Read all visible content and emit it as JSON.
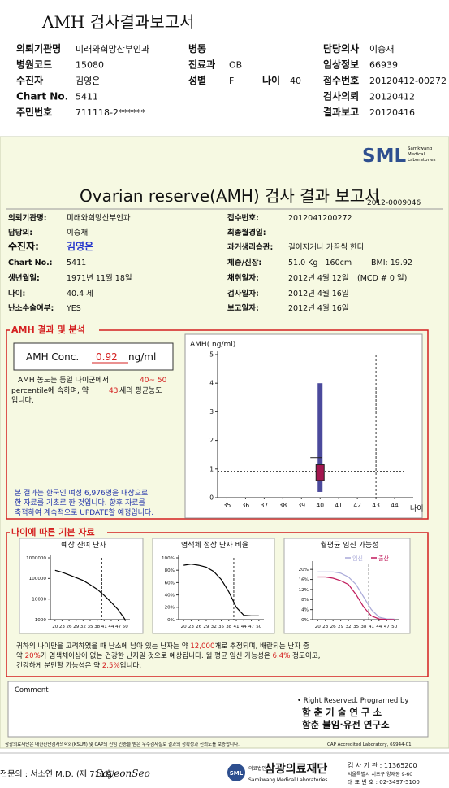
{
  "header": {
    "title": "AMH 검사결과보고서",
    "left": [
      {
        "label": "의뢰기관명",
        "value": "미래와희망산부인과"
      },
      {
        "label": "병원코드",
        "value": "15080"
      },
      {
        "label": "수진자",
        "value": "김영은"
      },
      {
        "label": "Chart No.",
        "value": "5411"
      },
      {
        "label": "주민번호",
        "value": "711118-2******"
      }
    ],
    "middle": [
      {
        "label": "병동"
      },
      {
        "label": "진료과",
        "value": "OB"
      },
      {
        "label": "성별",
        "value": "F"
      }
    ],
    "age": {
      "label": "나이",
      "value": "40"
    },
    "right": [
      {
        "label": "담당의사",
        "value": "이승재"
      },
      {
        "label": "임상정보",
        "value": "66939"
      },
      {
        "label": "접수번호",
        "value": "20120412-00272"
      },
      {
        "label": "검사의뢰",
        "value": "20120412"
      },
      {
        "label": "결과보고",
        "value": "20120416"
      }
    ]
  },
  "report": {
    "logo": {
      "mark": "SML",
      "lines": [
        "Samkwang",
        "Medical",
        "Laboratories"
      ]
    },
    "title": "Ovarian reserve(AMH) 검사 결과 보고서",
    "number": "2012-0009046",
    "left": [
      {
        "label": "의뢰기관명:",
        "value": "미래와희망산부인과"
      },
      {
        "label": "담당의:",
        "value": "이승재"
      },
      {
        "label": "수진자:",
        "value": "김영은"
      },
      {
        "label": "Chart No.:",
        "value": "5411"
      },
      {
        "label": "생년월일:",
        "value": "1971년 11월 18일"
      },
      {
        "label": "나이:",
        "value": "40.4 세"
      },
      {
        "label": "난소수술여부:",
        "value": "YES"
      }
    ],
    "right": [
      {
        "label": "접수번호:",
        "value": "2012041200272"
      },
      {
        "label": "최종월경일:"
      },
      {
        "label": "과거생리습관:",
        "value": "길어지거나 가끔씩 한다"
      },
      {
        "label": "체중/신장:",
        "value": "51.0 Kg   160cm",
        "extra": "BMI: 19.92"
      },
      {
        "label": "채취일자:",
        "value": "2012년 4월 12일",
        "extra": "(MCD # 0 일)"
      },
      {
        "label": "검사일자:",
        "value": "2012년 4월 16일"
      },
      {
        "label": "보고일자:",
        "value": "2012년 4월 16일"
      }
    ],
    "amh": {
      "section_title": "AMH 결과 및 분석",
      "conc_label": "AMH Conc.",
      "conc_value": "0.92",
      "conc_unit": "ng/ml",
      "description": [
        "AMH 농도는 동일 나이군에서",
        "40~ 50",
        "percentile에 속하며, 약",
        "43",
        "세의 평균농도",
        "입니다."
      ],
      "note": [
        "본 결과는 한국인 여성 6,976명을 대상으로",
        "한 자료를 기초로 한 것입니다. 향후 자료를",
        "축적하여 계속적으로 UPDATE할 예정입니다."
      ]
    },
    "basic": {
      "section_title": "나이에 따른 기본 자료",
      "summary": [
        [
          "귀하의 나이만을 고려하였을 때 난소에 남아 있는 난자는 약 ",
          "12,000",
          "개로 추정되며, 배란되는 난자 중"
        ],
        [
          "약 ",
          "20%",
          "가 염색체이상이 없는 건강한 난자일 것으로 예상됩니다. 월 평균 임신 가능성은 ",
          "6.4%",
          " 정도이고,"
        ],
        [
          "건강하게 분만할 가능성은 약 ",
          "2.5%",
          "입니다."
        ]
      ]
    },
    "comment": "Comment",
    "credits": [
      "• Right Reserved. Programed by",
      "함 춘 기 술 연 구 소",
      "함춘 불임·유전 연구소"
    ]
  },
  "footer": {
    "note": "삼광의료재단은 대한진단검사의학회(KSLM) 및 CAP의 신임 인증을 받은 우수검사실로 결과의 정확성과 신뢰도를 보증합니다.",
    "cap": "CAP Accredited Laboratory, 69944-01",
    "doctor": "전문의 : 서소연 M.D. (제 711호)",
    "signature": "SoyeonSeo",
    "org_type": "의료법인",
    "org_name": "삼광의료재단",
    "org_en": "Samkwang Medical Laboratories",
    "org_mark": "SML",
    "contact": [
      "검 사 기 관 : 11365200",
      "서울특별시 서초구 양재동 9-60",
      "대 표 번 호 : 02-3497-5100"
    ]
  },
  "chart_data": [
    {
      "type": "box",
      "y_label": "AMH( ng/ml)",
      "x_label": "나이",
      "xlim": [
        34.5,
        45
      ],
      "xticks": [
        35,
        36,
        37,
        38,
        39,
        40,
        41,
        42,
        43,
        44
      ],
      "ylim": [
        0,
        5
      ],
      "yticks": [
        0,
        1,
        2,
        3,
        4,
        5
      ],
      "box": {
        "x": 40,
        "low": 0.2,
        "q1": 0.6,
        "q3": 1.15,
        "high": 4.0,
        "mean": 1.4
      },
      "whisker_color": "#4b4a9c",
      "box_color": "#a3164f",
      "reference_value": 0.92,
      "reference_age": 43
    },
    {
      "type": "line",
      "title": "예상 잔여 난자",
      "x": [
        20,
        23,
        26,
        29,
        32,
        35,
        38,
        41,
        44,
        47,
        50
      ],
      "xlim": [
        18,
        52
      ],
      "xticks": [
        20,
        23,
        26,
        29,
        32,
        35,
        38,
        41,
        44,
        47,
        50
      ],
      "log": true,
      "ylim": [
        1000,
        1000000
      ],
      "yticks": [
        1000,
        10000,
        100000,
        1000000
      ],
      "values": [
        250000,
        200000,
        150000,
        110000,
        80000,
        50000,
        30000,
        15000,
        7000,
        3000,
        1000
      ],
      "color": "#000000",
      "marker_x": 40
    },
    {
      "type": "line",
      "title": "염색체 정상 난자 비율",
      "x": [
        20,
        23,
        26,
        29,
        32,
        35,
        38,
        41,
        44,
        47,
        50
      ],
      "xlim": [
        18,
        52
      ],
      "xticks": [
        20,
        23,
        26,
        29,
        32,
        35,
        38,
        41,
        44,
        47,
        50
      ],
      "ylim": [
        0,
        100
      ],
      "yticks": [
        {
          "value": 0,
          "label": "0%"
        },
        {
          "value": 20,
          "label": "20%"
        },
        {
          "value": 40,
          "label": "40%"
        },
        {
          "value": 60,
          "label": "60%"
        },
        {
          "value": 80,
          "label": "80%"
        },
        {
          "value": 100,
          "label": "100%"
        }
      ],
      "values": [
        88,
        90,
        88,
        85,
        78,
        65,
        45,
        20,
        7,
        6,
        6
      ],
      "color": "#000000",
      "marker_x": 40
    },
    {
      "type": "line",
      "title": "월평균 임신 가능성",
      "x": [
        20,
        23,
        26,
        29,
        32,
        35,
        38,
        41,
        44,
        47,
        50
      ],
      "xlim": [
        18,
        52
      ],
      "xticks": [
        20,
        23,
        26,
        29,
        32,
        35,
        38,
        41,
        44,
        47,
        50
      ],
      "ylim": [
        0,
        22
      ],
      "yticks": [
        {
          "value": 0,
          "label": "0%"
        },
        {
          "value": 4,
          "label": "4%"
        },
        {
          "value": 8,
          "label": "8%"
        },
        {
          "value": 12,
          "label": "12%"
        },
        {
          "value": 16,
          "label": "16%"
        },
        {
          "value": 20,
          "label": "20%"
        }
      ],
      "series": [
        {
          "name": "임신",
          "color": "#a9a9d8",
          "values": [
            19,
            19,
            19,
            18.5,
            17,
            14,
            9,
            4,
            1,
            0.3,
            0.2
          ]
        },
        {
          "name": "출산",
          "color": "#c0195a",
          "values": [
            17,
            17,
            16.5,
            15.5,
            14,
            10,
            5,
            1.5,
            0.3,
            0.1,
            0
          ]
        }
      ],
      "marker_x": 40
    }
  ]
}
